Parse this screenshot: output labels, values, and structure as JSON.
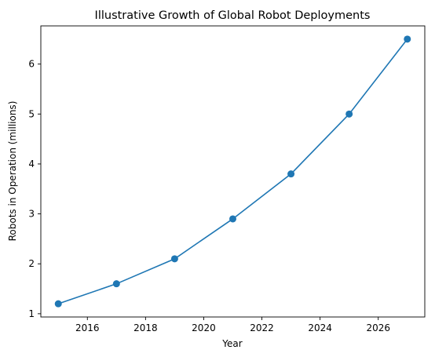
{
  "chart_data": {
    "type": "line",
    "title": "Illustrative Growth of Global Robot Deployments",
    "xlabel": "Year",
    "ylabel": "Robots in Operation (millions)",
    "x": [
      2015,
      2017,
      2019,
      2021,
      2023,
      2025,
      2027
    ],
    "series": [
      {
        "values": [
          1.2,
          1.6,
          2.1,
          2.9,
          3.8,
          5.0,
          6.5
        ]
      }
    ],
    "xticks": [
      2016,
      2018,
      2020,
      2022,
      2024,
      2026
    ],
    "yticks": [
      1,
      2,
      3,
      4,
      5,
      6
    ],
    "xlim": [
      2014.4,
      2027.6
    ],
    "ylim": [
      0.935,
      6.765
    ],
    "grid": false,
    "markers": true,
    "colors": {
      "line": "#1f77b4",
      "marker": "#1f77b4"
    }
  }
}
